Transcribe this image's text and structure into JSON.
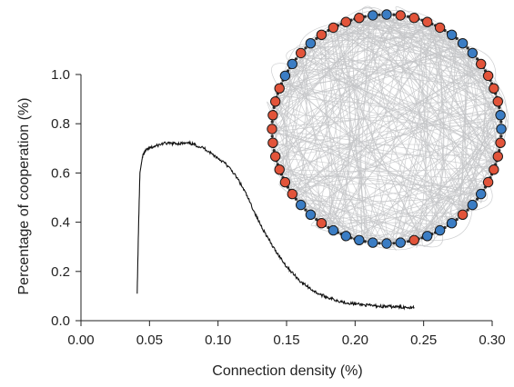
{
  "chart_data": {
    "type": "line",
    "title": "",
    "xlabel": "Connection density (%)",
    "ylabel": "Percentage of cooperation (%)",
    "xlim": [
      0.0,
      0.3
    ],
    "ylim": [
      0.0,
      1.0
    ],
    "x_ticks": [
      0.0,
      0.05,
      0.1,
      0.15,
      0.2,
      0.25,
      0.3
    ],
    "x_tick_labels": [
      "0.00",
      "0.05",
      "0.10",
      "0.15",
      "0.20",
      "0.25",
      "0.30"
    ],
    "y_ticks": [
      0.0,
      0.2,
      0.4,
      0.6,
      0.8,
      1.0
    ],
    "y_tick_labels": [
      "0.0",
      "0.2",
      "0.4",
      "0.6",
      "0.8",
      "1.0"
    ],
    "grid": false,
    "legend": "none",
    "line_color": "#111111",
    "series": [
      {
        "x": [
          0.041,
          0.042,
          0.043,
          0.045,
          0.047,
          0.05,
          0.055,
          0.06,
          0.065,
          0.07,
          0.075,
          0.08,
          0.085,
          0.09,
          0.095,
          0.1,
          0.105,
          0.11,
          0.115,
          0.12,
          0.125,
          0.13,
          0.135,
          0.14,
          0.145,
          0.15,
          0.155,
          0.16,
          0.165,
          0.17,
          0.175,
          0.18,
          0.185,
          0.19,
          0.195,
          0.2,
          0.205,
          0.21,
          0.215,
          0.22,
          0.225,
          0.23,
          0.235,
          0.24,
          0.243
        ],
        "y": [
          0.11,
          0.38,
          0.6,
          0.67,
          0.69,
          0.7,
          0.71,
          0.72,
          0.72,
          0.72,
          0.72,
          0.72,
          0.71,
          0.7,
          0.68,
          0.66,
          0.64,
          0.61,
          0.57,
          0.52,
          0.46,
          0.4,
          0.35,
          0.3,
          0.26,
          0.22,
          0.19,
          0.16,
          0.14,
          0.12,
          0.105,
          0.095,
          0.085,
          0.078,
          0.072,
          0.068,
          0.065,
          0.062,
          0.06,
          0.058,
          0.057,
          0.056,
          0.055,
          0.055,
          0.055
        ]
      }
    ],
    "inset": {
      "type": "network",
      "node_count": 52,
      "node_colors": {
        "cooperator": "#3b7dc4",
        "defector": "#e2543a"
      },
      "edge_color": "#c4c6c8",
      "node_pattern": [
        "blue",
        "red",
        "red",
        "red",
        "red",
        "blue",
        "blue",
        "blue",
        "red",
        "red",
        "red",
        "red",
        "blue",
        "blue",
        "red",
        "red",
        "red",
        "red",
        "blue",
        "blue",
        "red",
        "blue",
        "blue",
        "blue",
        "red",
        "blue",
        "blue",
        "blue",
        "blue",
        "blue",
        "blue",
        "red",
        "blue",
        "blue",
        "red",
        "red",
        "red",
        "red",
        "red",
        "red",
        "red",
        "red",
        "red",
        "blue",
        "blue",
        "red",
        "blue",
        "red",
        "red",
        "red",
        "red",
        "blue"
      ]
    }
  }
}
